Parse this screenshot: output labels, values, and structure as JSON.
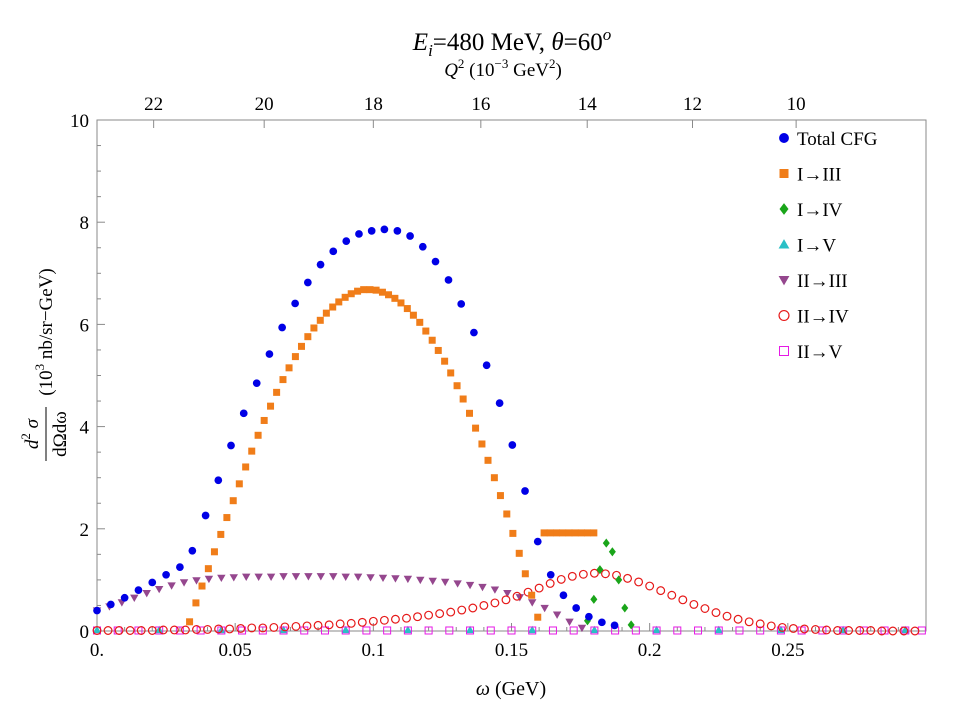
{
  "chart_data": {
    "type": "scatter",
    "title": "E_i=480 MeV, θ=60^o",
    "title_parts": {
      "E": "E",
      "i": "i",
      "eq_energy": "=480 MeV, ",
      "theta": "θ",
      "eq_angle": "=60",
      "o": "o"
    },
    "xlabel": "ω (GeV)",
    "xlabel_parts": {
      "omega": "ω",
      "unit": " (GeV)"
    },
    "ylabel": "d²σ / dΩdω (10³ nb/sr−GeV)",
    "ylabel_parts": {
      "d": "d",
      "two": "2",
      "sigma": " σ",
      "den": "dΩdω",
      "unit_a": "(10",
      "three": "3",
      "unit_b": " nb/sr−GeV)"
    },
    "top_axis_label": "Q² (10⁻³ GeV²)",
    "top_axis_parts": {
      "Q": "Q",
      "two": "2",
      "unit_a": " (10",
      "exp": "−3",
      "unit_b": " GeV",
      "two_b": "2",
      "close": ")"
    },
    "xlim": [
      0,
      0.3
    ],
    "ylim": [
      0,
      10
    ],
    "xticks": [
      {
        "value": 0,
        "label": "0."
      },
      {
        "value": 0.05,
        "label": "0.05"
      },
      {
        "value": 0.1,
        "label": "0.1"
      },
      {
        "value": 0.15,
        "label": "0.15"
      },
      {
        "value": 0.2,
        "label": "0.2"
      },
      {
        "value": 0.25,
        "label": "0.25"
      }
    ],
    "yticks": [
      {
        "value": 0,
        "label": "0"
      },
      {
        "value": 2,
        "label": "2"
      },
      {
        "value": 4,
        "label": "4"
      },
      {
        "value": 6,
        "label": "6"
      },
      {
        "value": 8,
        "label": "8"
      },
      {
        "value": 10,
        "label": "10"
      }
    ],
    "top_ticks": [
      {
        "q2": 22,
        "omega": 0.0205,
        "label": "22"
      },
      {
        "q2": 20,
        "omega": 0.0605,
        "label": "20"
      },
      {
        "q2": 18,
        "omega": 0.1,
        "label": "18"
      },
      {
        "q2": 16,
        "omega": 0.1389,
        "label": "16"
      },
      {
        "q2": 14,
        "omega": 0.1774,
        "label": "14"
      },
      {
        "q2": 12,
        "omega": 0.2155,
        "label": "12"
      },
      {
        "q2": 10,
        "omega": 0.253,
        "label": "10"
      }
    ],
    "grid": false,
    "legend_position": "top-right",
    "series": [
      {
        "name": "Total CFG",
        "marker": "circle-filled",
        "color": "#0000e6",
        "x": [
          0.0,
          0.005,
          0.01,
          0.015,
          0.02,
          0.025,
          0.03,
          0.0345,
          0.0393,
          0.0439,
          0.0485,
          0.0531,
          0.0578,
          0.0624,
          0.067,
          0.0717,
          0.0763,
          0.0809,
          0.0855,
          0.0902,
          0.0948,
          0.0994,
          0.104,
          0.1087,
          0.1133,
          0.1179,
          0.1225,
          0.1272,
          0.1318,
          0.1364,
          0.141,
          0.1457,
          0.1503,
          0.1549,
          0.1595,
          0.1642,
          0.1688,
          0.1734,
          0.178,
          0.1827,
          0.1873
        ],
        "y": [
          0.4,
          0.52,
          0.65,
          0.8,
          0.95,
          1.1,
          1.25,
          1.57,
          2.26,
          2.95,
          3.63,
          4.26,
          4.85,
          5.42,
          5.94,
          6.41,
          6.82,
          7.17,
          7.43,
          7.63,
          7.77,
          7.83,
          7.86,
          7.83,
          7.73,
          7.52,
          7.23,
          6.87,
          6.4,
          5.84,
          5.2,
          4.46,
          3.64,
          2.74,
          1.75,
          1.1,
          0.7,
          0.45,
          0.28,
          0.17,
          0.11
        ]
      },
      {
        "name": "I→III",
        "marker": "square-filled",
        "color": "#f07d19",
        "x": [
          0.0335,
          0.0358,
          0.038,
          0.0403,
          0.0425,
          0.0448,
          0.047,
          0.0493,
          0.0515,
          0.0538,
          0.056,
          0.0583,
          0.0605,
          0.0628,
          0.065,
          0.0673,
          0.0695,
          0.0718,
          0.074,
          0.0763,
          0.0785,
          0.0808,
          0.083,
          0.0853,
          0.0875,
          0.0898,
          0.092,
          0.0943,
          0.0965,
          0.0988,
          0.101,
          0.1033,
          0.1055,
          0.1078,
          0.11,
          0.1123,
          0.1145,
          0.1168,
          0.119,
          0.1213,
          0.1235,
          0.1258,
          0.128,
          0.1303,
          0.1325,
          0.1348,
          0.137,
          0.1393,
          0.1415,
          0.1438,
          0.146,
          0.1483,
          0.1505,
          0.1528,
          0.155,
          0.1573,
          0.1595,
          0.1618,
          0.164,
          0.1663,
          0.1685,
          0.1708,
          0.173,
          0.1753,
          0.1775,
          0.1798
        ],
        "y": [
          0.18,
          0.55,
          0.88,
          1.22,
          1.55,
          1.89,
          2.22,
          2.55,
          2.88,
          3.21,
          3.52,
          3.83,
          4.12,
          4.4,
          4.67,
          4.92,
          5.15,
          5.37,
          5.57,
          5.76,
          5.93,
          6.08,
          6.22,
          6.34,
          6.44,
          6.53,
          6.6,
          6.65,
          6.68,
          6.68,
          6.67,
          6.63,
          6.58,
          6.51,
          6.42,
          6.31,
          6.18,
          6.04,
          5.87,
          5.69,
          5.49,
          5.28,
          5.05,
          4.8,
          4.54,
          4.26,
          3.97,
          3.66,
          3.34,
          3.0,
          2.65,
          2.29,
          1.91,
          1.52,
          1.12,
          0.7,
          0.27,
          1.92,
          1.92,
          1.92,
          1.92,
          1.92,
          1.92,
          1.92,
          1.92,
          1.92
        ]
      },
      {
        "name": "I→IV",
        "marker": "diamond-filled",
        "color": "#1aa51a",
        "x": [
          0.1775,
          0.1798,
          0.182,
          0.1843,
          0.1865,
          0.1888,
          0.191,
          0.1933
        ],
        "y": [
          0.2,
          0.62,
          1.2,
          1.72,
          1.55,
          1.0,
          0.45,
          0.12
        ]
      },
      {
        "name": "I→V",
        "marker": "triangle-up-filled",
        "color": "#2ac0c6",
        "x": [
          0.0,
          0.0225,
          0.045,
          0.0675,
          0.09,
          0.1125,
          0.135,
          0.1575,
          0.18,
          0.2025,
          0.225,
          0.2475,
          0.27,
          0.2925
        ],
        "y": [
          0.02,
          0.02,
          0.02,
          0.02,
          0.02,
          0.02,
          0.02,
          0.02,
          0.02,
          0.02,
          0.02,
          0.02,
          0.02,
          0.02
        ]
      },
      {
        "name": "II→III",
        "marker": "triangle-down-filled",
        "color": "#95478e",
        "x": [
          0.0,
          0.0045,
          0.009,
          0.0135,
          0.018,
          0.0225,
          0.027,
          0.0315,
          0.036,
          0.0405,
          0.045,
          0.0495,
          0.054,
          0.0585,
          0.063,
          0.0675,
          0.072,
          0.0765,
          0.081,
          0.0855,
          0.09,
          0.0945,
          0.099,
          0.1035,
          0.108,
          0.1125,
          0.117,
          0.1215,
          0.126,
          0.1305,
          0.135,
          0.1395,
          0.144,
          0.1485,
          0.153,
          0.1575,
          0.162,
          0.1665,
          0.171,
          0.1755
        ],
        "y": [
          0.4,
          0.48,
          0.56,
          0.65,
          0.74,
          0.82,
          0.89,
          0.95,
          0.99,
          1.02,
          1.04,
          1.05,
          1.06,
          1.06,
          1.06,
          1.07,
          1.07,
          1.07,
          1.07,
          1.07,
          1.06,
          1.06,
          1.05,
          1.04,
          1.03,
          1.02,
          1.0,
          0.98,
          0.96,
          0.93,
          0.9,
          0.86,
          0.81,
          0.74,
          0.66,
          0.56,
          0.45,
          0.32,
          0.18,
          0.06
        ]
      },
      {
        "name": "II→IV",
        "marker": "circle-open",
        "color": "#e61919",
        "x": [
          0.0,
          0.004,
          0.008,
          0.012,
          0.016,
          0.02,
          0.024,
          0.028,
          0.032,
          0.036,
          0.04,
          0.044,
          0.048,
          0.052,
          0.056,
          0.06,
          0.064,
          0.068,
          0.072,
          0.076,
          0.08,
          0.084,
          0.088,
          0.092,
          0.096,
          0.1,
          0.104,
          0.108,
          0.112,
          0.116,
          0.12,
          0.124,
          0.128,
          0.132,
          0.136,
          0.14,
          0.144,
          0.148,
          0.152,
          0.156,
          0.16,
          0.164,
          0.168,
          0.172,
          0.176,
          0.18,
          0.184,
          0.188,
          0.192,
          0.196,
          0.2,
          0.204,
          0.208,
          0.212,
          0.216,
          0.22,
          0.224,
          0.228,
          0.232,
          0.236,
          0.24,
          0.244,
          0.248,
          0.252,
          0.256,
          0.26,
          0.264,
          0.268,
          0.272,
          0.276,
          0.28,
          0.284,
          0.288,
          0.292,
          0.296
        ],
        "y": [
          0.01,
          0.01,
          0.01,
          0.01,
          0.01,
          0.01,
          0.02,
          0.02,
          0.02,
          0.03,
          0.03,
          0.04,
          0.04,
          0.05,
          0.06,
          0.06,
          0.07,
          0.08,
          0.09,
          0.1,
          0.11,
          0.12,
          0.14,
          0.15,
          0.17,
          0.19,
          0.21,
          0.23,
          0.25,
          0.28,
          0.31,
          0.34,
          0.37,
          0.41,
          0.45,
          0.5,
          0.55,
          0.61,
          0.68,
          0.76,
          0.84,
          0.93,
          1.01,
          1.07,
          1.11,
          1.13,
          1.12,
          1.09,
          1.03,
          0.96,
          0.88,
          0.79,
          0.7,
          0.61,
          0.52,
          0.44,
          0.36,
          0.29,
          0.23,
          0.18,
          0.14,
          0.1,
          0.07,
          0.05,
          0.04,
          0.03,
          0.02,
          0.01,
          0.01,
          0.01,
          0.01,
          0.0,
          0.0,
          0.0,
          0.0
        ]
      },
      {
        "name": "II→V",
        "marker": "square-open",
        "color": "#e619e6",
        "x": [
          0.0,
          0.0075,
          0.015,
          0.0225,
          0.03,
          0.0375,
          0.045,
          0.0525,
          0.06,
          0.0675,
          0.075,
          0.0825,
          0.09,
          0.0975,
          0.105,
          0.1125,
          0.12,
          0.1275,
          0.135,
          0.1425,
          0.15,
          0.1575,
          0.165,
          0.1725,
          0.18,
          0.1875,
          0.195,
          0.2025,
          0.21,
          0.2175,
          0.225,
          0.2325,
          0.24,
          0.2475,
          0.255,
          0.2625,
          0.27,
          0.2775,
          0.285,
          0.2925,
          0.2985
        ],
        "y": [
          0.01,
          0.01,
          0.01,
          0.01,
          0.01,
          0.01,
          0.01,
          0.01,
          0.01,
          0.01,
          0.01,
          0.01,
          0.01,
          0.01,
          0.01,
          0.01,
          0.01,
          0.01,
          0.01,
          0.01,
          0.01,
          0.01,
          0.01,
          0.01,
          0.01,
          0.01,
          0.01,
          0.01,
          0.01,
          0.01,
          0.01,
          0.01,
          0.01,
          0.01,
          0.01,
          0.01,
          0.01,
          0.01,
          0.01,
          0.01,
          0.01
        ]
      }
    ]
  }
}
